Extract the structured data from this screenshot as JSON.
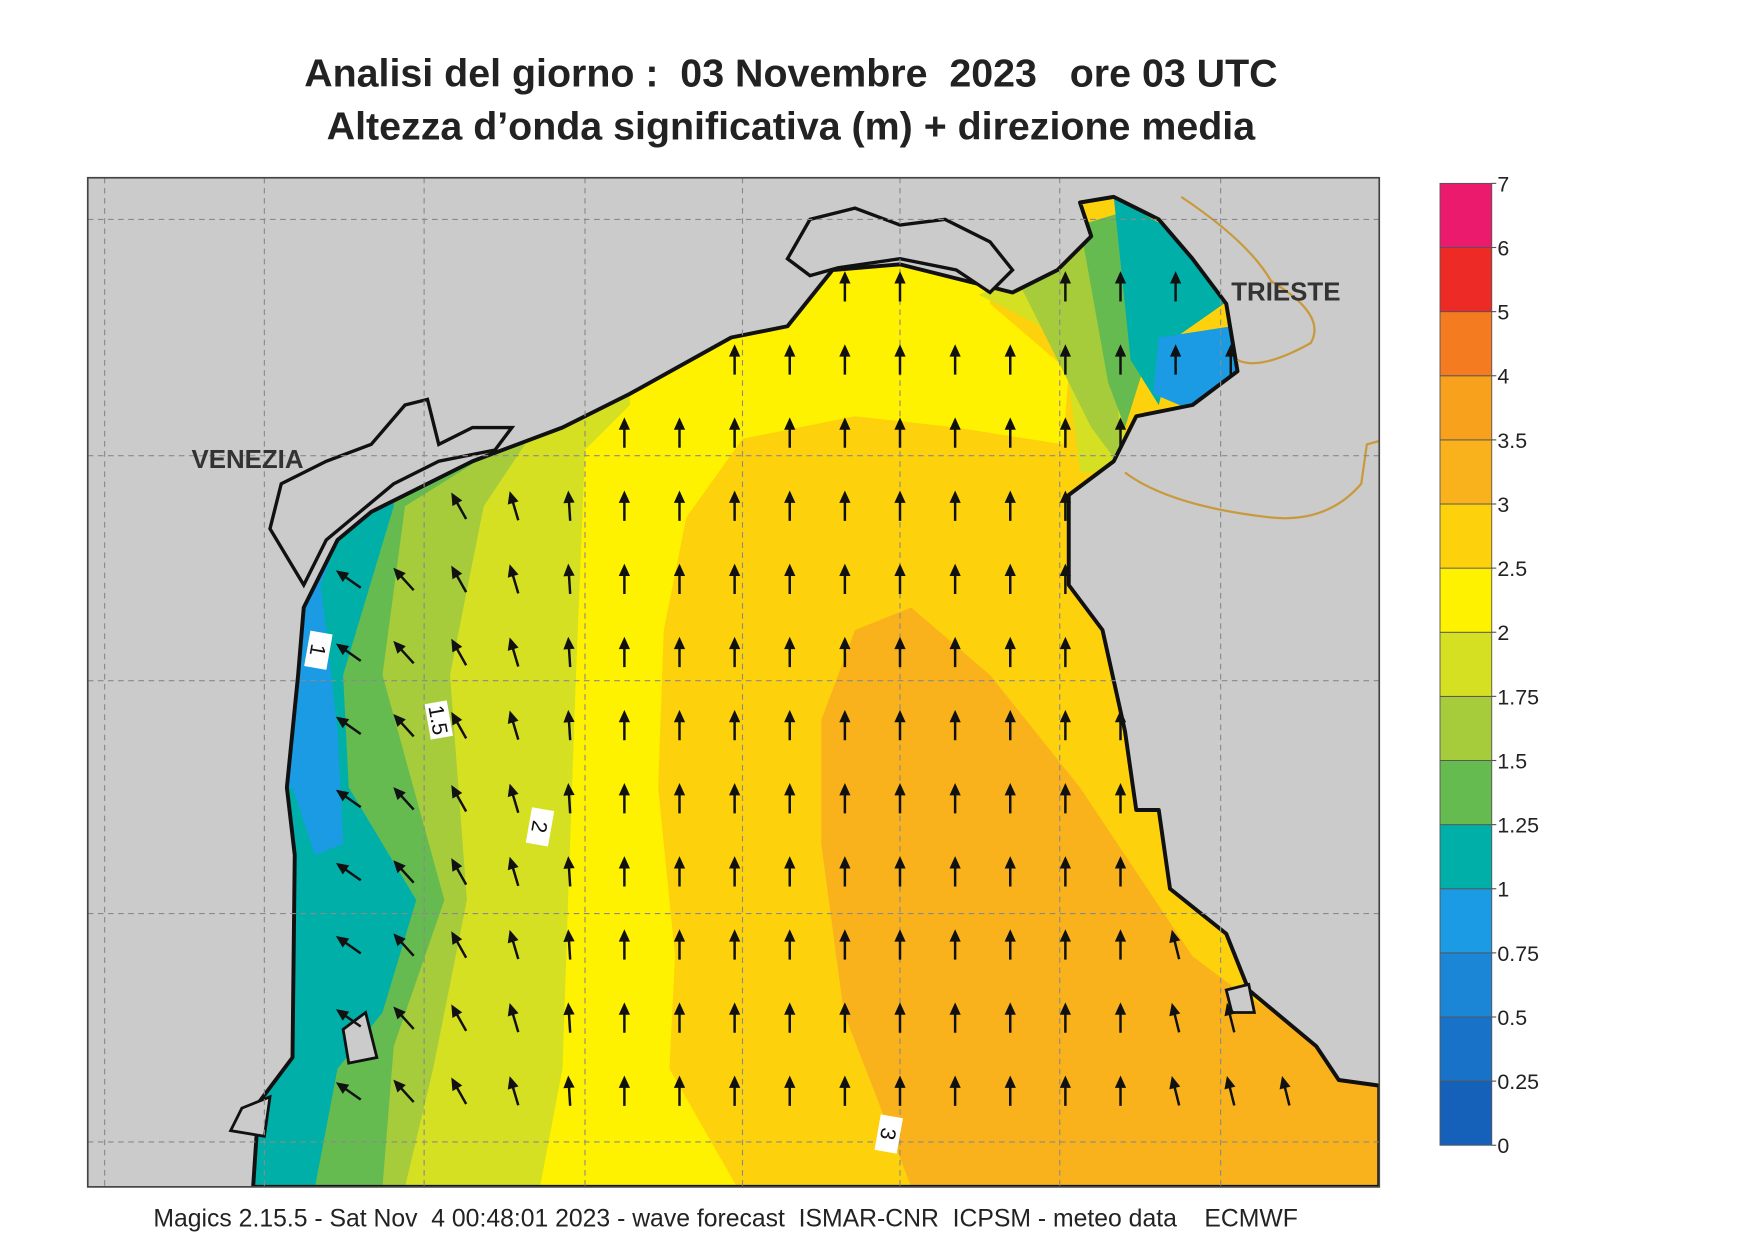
{
  "title": {
    "line1": "Analisi del giorno :  03 Novembre  2023   ore 03 UTC",
    "line2": "Altezza d’onda significativa (m) + direzione media"
  },
  "map": {
    "place_labels": [
      "VENEZIA",
      "TRIESTE"
    ],
    "contour_labels": [
      1,
      1.5,
      2,
      3
    ]
  },
  "colorbar": {
    "levels": [
      0,
      0.25,
      0.5,
      0.75,
      1,
      1.25,
      1.5,
      1.75,
      2,
      2.5,
      3,
      3.5,
      4,
      5,
      6,
      7
    ],
    "colors": [
      "#1560b8",
      "#1873c8",
      "#1c86d6",
      "#1b9be3",
      "#00b0a8",
      "#65bb50",
      "#a6cc3b",
      "#d6e022",
      "#fff200",
      "#fdd20c",
      "#f9b21c",
      "#f7a11d",
      "#f47b20",
      "#ed2a26",
      "#ec1a6c"
    ]
  },
  "footer": "Magics 2.15.5 - Sat Nov  4 00:48:01 2023 - wave forecast  ISMAR-CNR  ICPSM - meteo data    ECMWF"
}
